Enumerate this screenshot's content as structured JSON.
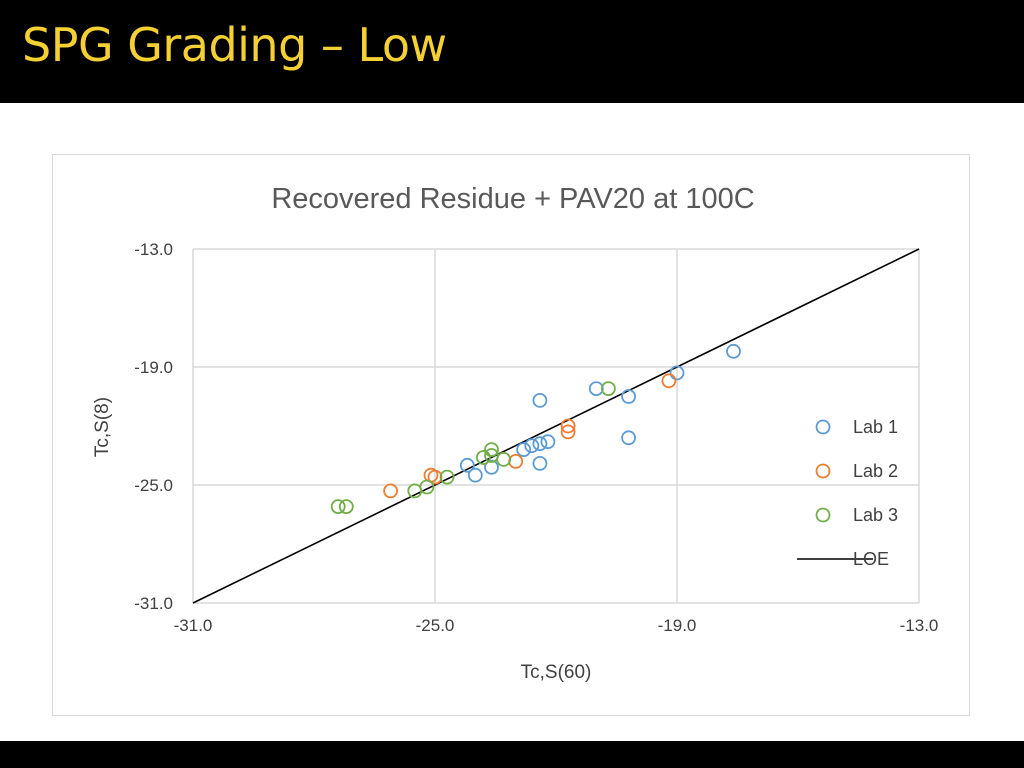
{
  "slide": {
    "title": "SPG Grading – Low"
  },
  "colors": {
    "title_bar": "#000000",
    "title_text": "#f5d033",
    "lab1": "#5b9bd5",
    "lab2": "#ed7d31",
    "lab3": "#70ad47",
    "loe": "#000000",
    "grid": "#d9d9d9"
  },
  "chart_data": {
    "type": "scatter",
    "title": "Recovered Residue + PAV20 at 100C",
    "xlabel": "Tc,S(60)",
    "ylabel": "Tc,S(8)",
    "xlim": [
      -31.0,
      -13.0
    ],
    "ylim": [
      -31.0,
      -13.0
    ],
    "x_ticks": [
      -31.0,
      -25.0,
      -19.0,
      -13.0
    ],
    "y_ticks": [
      -31.0,
      -25.0,
      -19.0,
      -13.0
    ],
    "x_tick_labels": [
      "-31.0",
      "-25.0",
      "-19.0",
      "-13.0"
    ],
    "y_tick_labels": [
      "-31.0",
      "-25.0",
      "-19.0",
      "-13.0"
    ],
    "grid": true,
    "legend_position": "right",
    "series": [
      {
        "name": "Lab 1",
        "marker": "open-circle",
        "points": [
          [
            -17.6,
            -18.2
          ],
          [
            -19.0,
            -19.3
          ],
          [
            -20.2,
            -20.5
          ],
          [
            -21.0,
            -20.1
          ],
          [
            -22.4,
            -20.7
          ],
          [
            -20.2,
            -22.6
          ],
          [
            -22.2,
            -22.8
          ],
          [
            -22.4,
            -22.9
          ],
          [
            -22.6,
            -23.0
          ],
          [
            -22.8,
            -23.2
          ],
          [
            -22.4,
            -23.9
          ],
          [
            -24.2,
            -24.0
          ],
          [
            -23.6,
            -24.1
          ],
          [
            -24.0,
            -24.5
          ]
        ]
      },
      {
        "name": "Lab 2",
        "marker": "open-circle",
        "points": [
          [
            -19.2,
            -19.7
          ],
          [
            -21.7,
            -22.3
          ],
          [
            -21.7,
            -22.0
          ],
          [
            -23.0,
            -23.8
          ],
          [
            -25.1,
            -24.5
          ],
          [
            -25.0,
            -24.6
          ],
          [
            -26.1,
            -25.3
          ]
        ]
      },
      {
        "name": "Lab 3",
        "marker": "open-circle",
        "points": [
          [
            -20.7,
            -20.1
          ],
          [
            -23.3,
            -23.7
          ],
          [
            -23.6,
            -23.2
          ],
          [
            -23.6,
            -23.5
          ],
          [
            -23.8,
            -23.6
          ],
          [
            -24.7,
            -24.6
          ],
          [
            -25.2,
            -25.1
          ],
          [
            -25.5,
            -25.3
          ],
          [
            -27.2,
            -26.1
          ],
          [
            -27.4,
            -26.1
          ]
        ]
      },
      {
        "name": "LOE",
        "marker": "line",
        "points": [
          [
            -31.0,
            -31.0
          ],
          [
            -13.0,
            -13.0
          ]
        ]
      }
    ]
  }
}
